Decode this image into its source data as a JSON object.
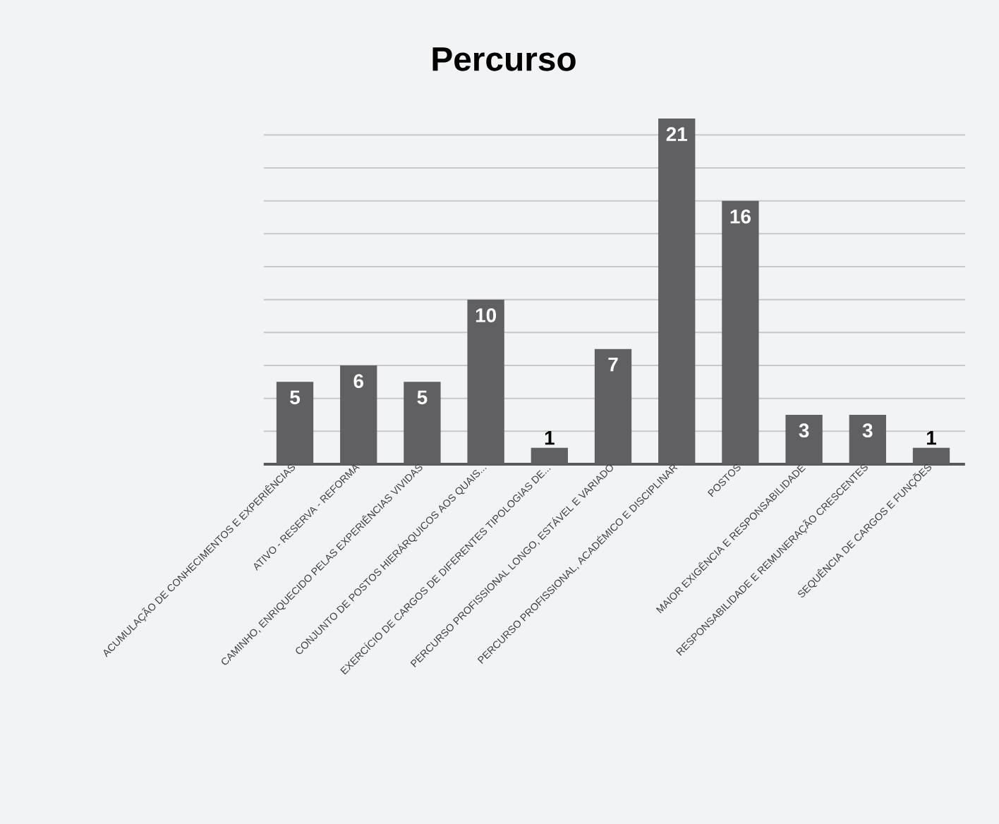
{
  "chart_data": {
    "type": "bar",
    "title": "Percurso",
    "categories": [
      "ACUMULAÇÃO DE CONHECIMENTOS E EXPERIÊNCIAS",
      "ATIVO - RESERVA - REFORMA",
      "CAMINHO, ENRIQUECIDO PELAS EXPERIÊNCIAS VIVIDAS",
      "CONJUNTO DE POSTOS HIERÁRQUICOS AOS QUAIS...",
      "EXERCÍCIO DE CARGOS DE DIFERENTES TIPOLOGIAS DE...",
      "PERCURSO PROFISSIONAL LONGO, ESTÁVEL E VARIADO",
      "PERCURSO PROFISSIONAL, ACADÉMICO E DISCIPLINAR",
      "POSTOS",
      "MAIOR EXIGÊNCIA E RESPONSABILIDADE",
      "RESPONSABILIDADE E REMUNERAÇÃO CRESCENTES",
      "SEQUÊNCIA DE CARGOS E FUNÇÕES"
    ],
    "values": [
      5,
      6,
      5,
      10,
      1,
      7,
      21,
      16,
      3,
      3,
      1
    ],
    "color": "#606062",
    "grid": "y",
    "tick_labels": "x",
    "data_labels": true
  }
}
